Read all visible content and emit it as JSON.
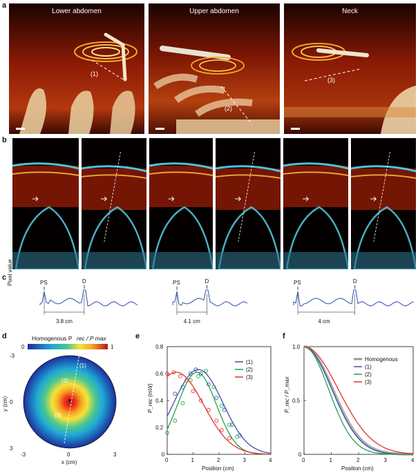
{
  "panels": {
    "a": "a",
    "b": "b",
    "c": "c",
    "d": "d",
    "e": "e",
    "f": "f"
  },
  "row_a": {
    "tiles": [
      {
        "title": "Lower abdomen",
        "path_label": "(1)"
      },
      {
        "title": "Upper abdomen",
        "path_label": "(2)"
      },
      {
        "title": "Neck",
        "path_label": "(3)"
      }
    ]
  },
  "row_c": {
    "ylabel": "Pixel value",
    "traces": [
      {
        "ps": "PS",
        "d": "D",
        "distance": "3.8 cm"
      },
      {
        "ps": "PS",
        "d": "D",
        "distance": "4.1 cm"
      },
      {
        "ps": "PS",
        "d": "D",
        "distance": "4 cm"
      }
    ]
  },
  "colors": {
    "series1": "#3b4fa8",
    "series2": "#21a04a",
    "series3": "#e53030",
    "homogeneous": "#9a9a9a",
    "trace": "#3a5fb0",
    "tissue_red": "#8a1a05",
    "vessel_cyan": "#4fc3d9"
  },
  "chart_data": [
    {
      "panel": "d",
      "type": "heatmap",
      "colorbar_title": "Homogenous P_rec / P_max",
      "colorbar_min": "0",
      "colorbar_max": "1",
      "xlabel": "x (cm)",
      "ylabel": "y (cm)",
      "xlim": [
        -3,
        3
      ],
      "ylim": [
        -3,
        3
      ],
      "xticks": [
        "-3",
        "0",
        "3"
      ],
      "yticks": [
        "-3",
        "0",
        "3"
      ],
      "paths": [
        "(1)",
        "(2)",
        "(3)"
      ]
    },
    {
      "panel": "e",
      "type": "line",
      "xlabel": "Position (cm)",
      "ylabel": "P_rec (mW)",
      "xlim": [
        0,
        4
      ],
      "ylim": [
        0,
        0.8
      ],
      "xticks": [
        "0",
        "1",
        "2",
        "3",
        "4"
      ],
      "yticks": [
        "0",
        "0.2",
        "0.4",
        "0.6",
        "0.8"
      ],
      "legend": [
        "(1)",
        "(2)",
        "(3)"
      ],
      "series": [
        {
          "name": "(1)",
          "fit": {
            "amp": 0.63,
            "mu": 1.2,
            "sigma": 0.95,
            "offset": 0.0
          },
          "points": [
            [
              0.3,
              0.45
            ],
            [
              0.6,
              0.5
            ],
            [
              0.9,
              0.6
            ],
            [
              1.1,
              0.63
            ],
            [
              1.3,
              0.6
            ],
            [
              1.6,
              0.52
            ],
            [
              1.9,
              0.42
            ],
            [
              2.2,
              0.33
            ],
            [
              2.5,
              0.22
            ],
            [
              2.8,
              0.14
            ]
          ]
        },
        {
          "name": "(2)",
          "fit": {
            "amp": 0.61,
            "mu": 1.15,
            "sigma": 0.75,
            "offset": 0.0
          },
          "points": [
            [
              0.0,
              0.16
            ],
            [
              0.3,
              0.25
            ],
            [
              0.6,
              0.38
            ],
            [
              0.9,
              0.55
            ],
            [
              1.2,
              0.58
            ],
            [
              1.5,
              0.62
            ],
            [
              1.8,
              0.5
            ],
            [
              2.1,
              0.36
            ],
            [
              2.4,
              0.22
            ],
            [
              2.7,
              0.13
            ]
          ]
        },
        {
          "name": "(3)",
          "fit": {
            "amp": 0.61,
            "mu": 0.35,
            "sigma": 1.05,
            "offset": 0.0
          },
          "points": [
            [
              0.0,
              0.6
            ],
            [
              0.25,
              0.61
            ],
            [
              0.5,
              0.58
            ],
            [
              0.75,
              0.55
            ],
            [
              1.0,
              0.47
            ],
            [
              1.3,
              0.4
            ],
            [
              1.6,
              0.33
            ],
            [
              1.9,
              0.25
            ],
            [
              2.1,
              0.18
            ],
            [
              2.4,
              0.12
            ]
          ]
        }
      ]
    },
    {
      "panel": "f",
      "type": "line",
      "xlabel": "Position (cm)",
      "ylabel": "P_rec / P_max",
      "xlim": [
        0,
        4
      ],
      "ylim": [
        0,
        1
      ],
      "xticks": [
        "0",
        "1",
        "2",
        "3",
        "4"
      ],
      "yticks": [
        "0",
        "0.5",
        "1.0"
      ],
      "legend": [
        "Homogenous",
        "(1)",
        "(2)",
        "(3)"
      ],
      "series": [
        {
          "name": "Homogenous",
          "sigma": 1.05
        },
        {
          "name": "(1)",
          "sigma": 1.02
        },
        {
          "name": "(2)",
          "sigma": 0.9
        },
        {
          "name": "(3)",
          "sigma": 1.25
        }
      ]
    }
  ]
}
